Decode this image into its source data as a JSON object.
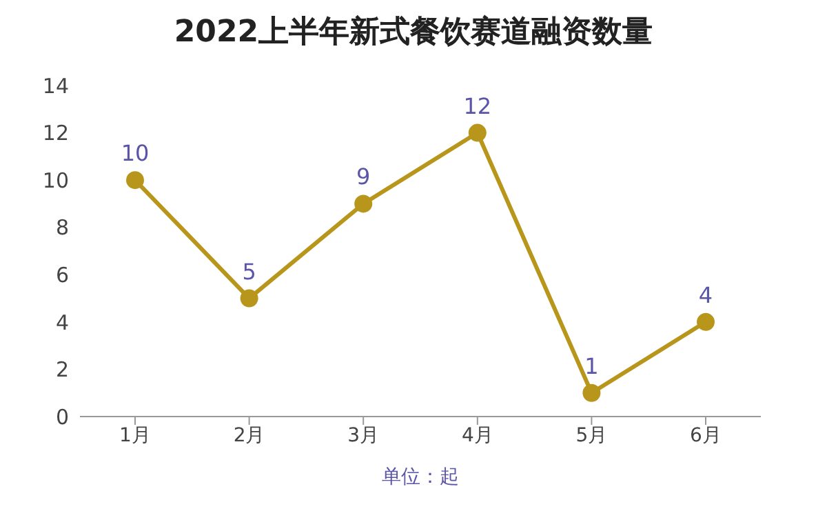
{
  "chart_data": {
    "type": "line",
    "title": "2022上半年新式餐饮赛道融资数量",
    "xlabel": "单位：起",
    "categories": [
      "1月",
      "2月",
      "3月",
      "4月",
      "5月",
      "6月"
    ],
    "series": [
      {
        "color": "#b8961c",
        "values": [
          10,
          5,
          9,
          12,
          1,
          4
        ]
      }
    ],
    "ylim": [
      0,
      14
    ],
    "yticks": [
      0,
      2,
      4,
      6,
      8,
      10,
      12,
      14
    ],
    "grid": false,
    "marker": "circle",
    "line_style": "solid",
    "data_labels": true
  }
}
